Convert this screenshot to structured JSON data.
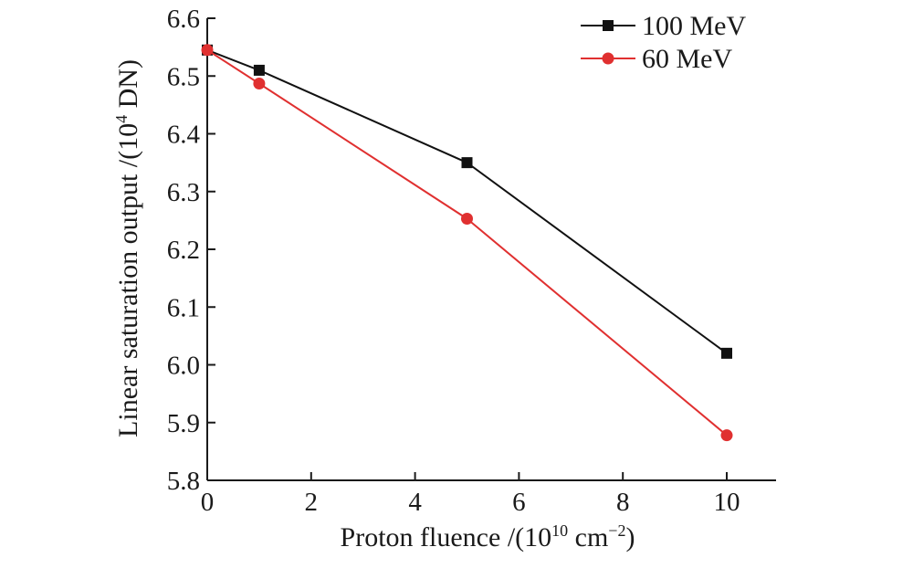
{
  "chart_data": {
    "type": "line",
    "title": "",
    "xlabel": {
      "prefix": "Proton fluence /(10",
      "sup1": "10",
      "mid": " cm",
      "sup2": "−2",
      "suffix": ")"
    },
    "ylabel": {
      "prefix": "Linear saturation output /(10",
      "sup": "4",
      "suffix": " DN)"
    },
    "xlim": [
      0,
      11
    ],
    "ylim": [
      5.8,
      6.6
    ],
    "xticks": [
      0,
      2,
      4,
      6,
      8,
      10
    ],
    "xtick_labels": [
      "0",
      "2",
      "4",
      "6",
      "8",
      "10"
    ],
    "yticks": [
      5.8,
      5.9,
      6.0,
      6.1,
      6.2,
      6.3,
      6.4,
      6.5,
      6.6
    ],
    "ytick_labels": [
      "5.8",
      "5.9",
      "6.0",
      "6.1",
      "6.2",
      "6.3",
      "6.4",
      "6.5",
      "6.6"
    ],
    "grid": false,
    "legend_position": "top-right",
    "x": [
      0,
      1,
      5,
      10
    ],
    "series": [
      {
        "name": "100 MeV",
        "values": [
          6.545,
          6.51,
          6.35,
          6.02
        ],
        "color": "#111111",
        "marker": "square"
      },
      {
        "name": "60 MeV",
        "values": [
          6.545,
          6.487,
          6.253,
          5.878
        ],
        "color": "#e03030",
        "marker": "circle"
      }
    ]
  }
}
